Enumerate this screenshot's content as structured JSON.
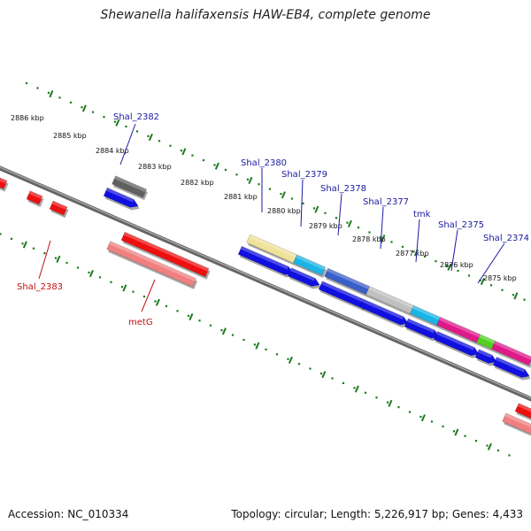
{
  "header": {
    "title": "Shewanella halifaxensis HAW-EB4, complete genome"
  },
  "footer": {
    "accession": "Accession: NC_010334",
    "summary": "Topology: circular; Length: 5,226,917 bp; Genes: 4,433"
  },
  "colors": {
    "plus_gene": "#1010e0",
    "minus_gene": "#ee1010",
    "minus_feature": "#f08080",
    "ticks": "#1f7a1f",
    "backbone": "#777777",
    "plus_label": "#1a1aa0",
    "minus_label": "#c01010"
  },
  "scale": {
    "ticks": [
      {
        "label": "2886 kbp"
      },
      {
        "label": "2885 kbp"
      },
      {
        "label": "2884 kbp"
      },
      {
        "label": "2883 kbp"
      },
      {
        "label": "2882 kbp"
      },
      {
        "label": "2881 kbp"
      },
      {
        "label": "2880 kbp"
      },
      {
        "label": "2879 kbp"
      },
      {
        "label": "2878 kbp"
      },
      {
        "label": "2877 kbp"
      },
      {
        "label": "2876 kbp"
      },
      {
        "label": "2875 kbp"
      }
    ]
  },
  "features": {
    "plus_labels": [
      {
        "label": "Shal_2382"
      },
      {
        "label": "Shal_2380"
      },
      {
        "label": "Shal_2379"
      },
      {
        "label": "Shal_2378"
      },
      {
        "label": "Shal_2377"
      },
      {
        "label": "tmk"
      },
      {
        "label": "Shal_2375"
      },
      {
        "label": "Shal_2374"
      }
    ],
    "minus_labels": [
      {
        "label": "Shal_2383"
      },
      {
        "label": "metG"
      }
    ],
    "plus_colored_bars": [
      {
        "color": "#606060"
      },
      {
        "color": "#efe39a"
      },
      {
        "color": "#1ab5e8"
      },
      {
        "color": "#3a5fc8"
      },
      {
        "color": "#c0c0c0"
      },
      {
        "color": "#1ab5e8"
      },
      {
        "color": "#e0198a"
      },
      {
        "color": "#50d020"
      },
      {
        "color": "#e0198a"
      }
    ]
  }
}
